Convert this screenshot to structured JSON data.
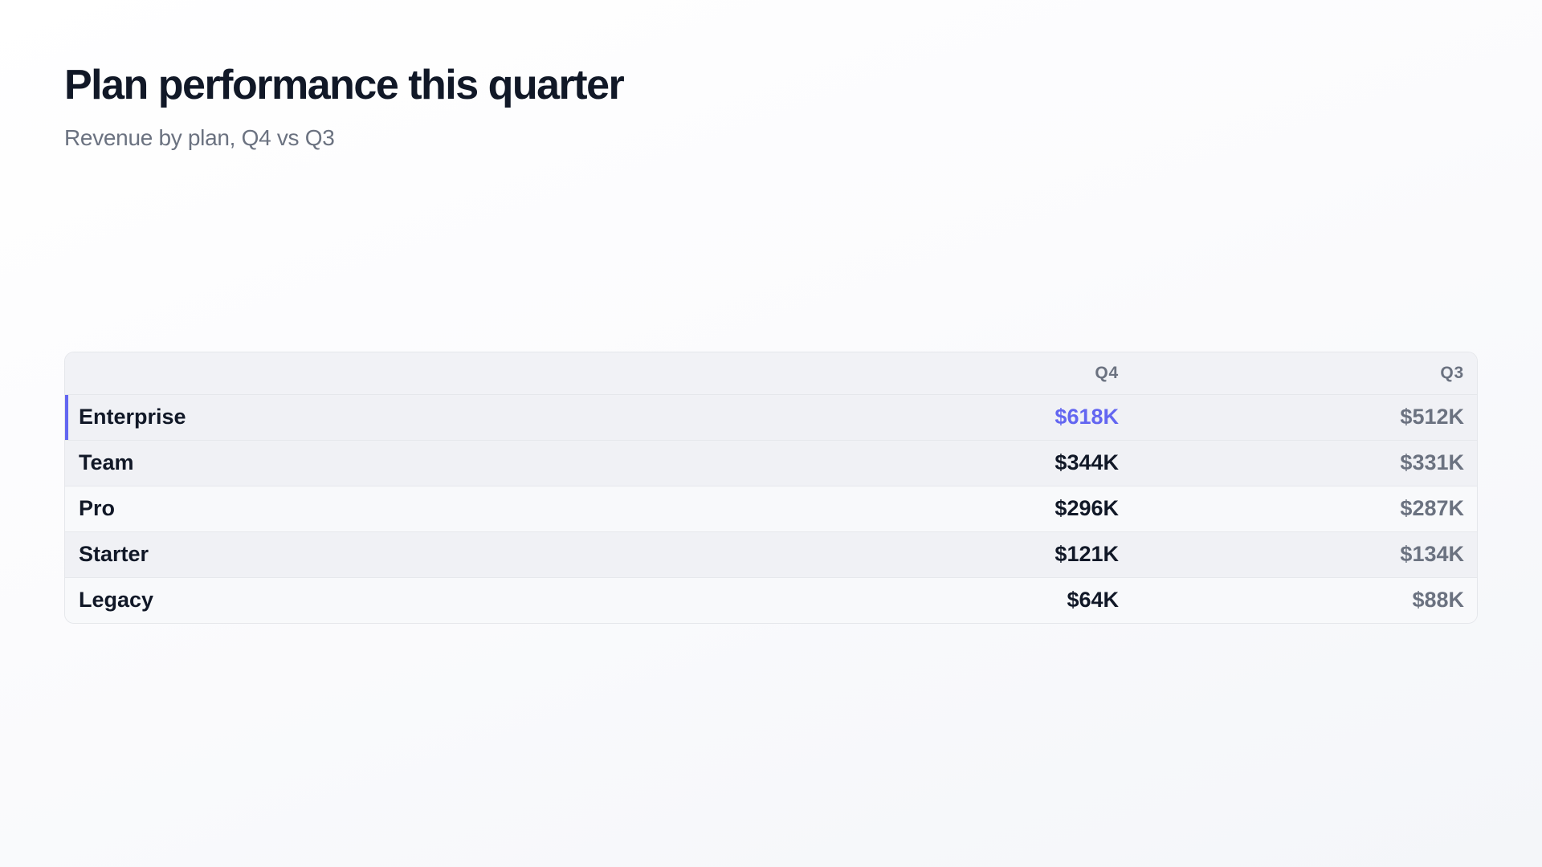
{
  "colors": {
    "accent": "#6366f1",
    "text_primary": "#111827",
    "text_muted": "#6b7280",
    "row_shaded": "#f0f1f5",
    "border": "#e5e7eb"
  },
  "chart_data": {
    "type": "table",
    "title": "Plan performance this quarter",
    "subtitle": "Revenue by plan, Q4 vs Q3",
    "columns": [
      "",
      "Q4",
      "Q3"
    ],
    "rows": [
      {
        "plan": "Enterprise",
        "q4": "$618K",
        "q3": "$512K",
        "highlight": true
      },
      {
        "plan": "Team",
        "q4": "$344K",
        "q3": "$331K",
        "highlight": false
      },
      {
        "plan": "Pro",
        "q4": "$296K",
        "q3": "$287K",
        "highlight": false
      },
      {
        "plan": "Starter",
        "q4": "$121K",
        "q3": "$134K",
        "highlight": false
      },
      {
        "plan": "Legacy",
        "q4": "$64K",
        "q3": "$88K",
        "highlight": false
      }
    ],
    "series": [
      {
        "name": "Q4",
        "values": [
          618,
          344,
          296,
          121,
          64
        ]
      },
      {
        "name": "Q3",
        "values": [
          512,
          331,
          287,
          134,
          88
        ]
      }
    ],
    "categories": [
      "Enterprise",
      "Team",
      "Pro",
      "Starter",
      "Legacy"
    ]
  }
}
